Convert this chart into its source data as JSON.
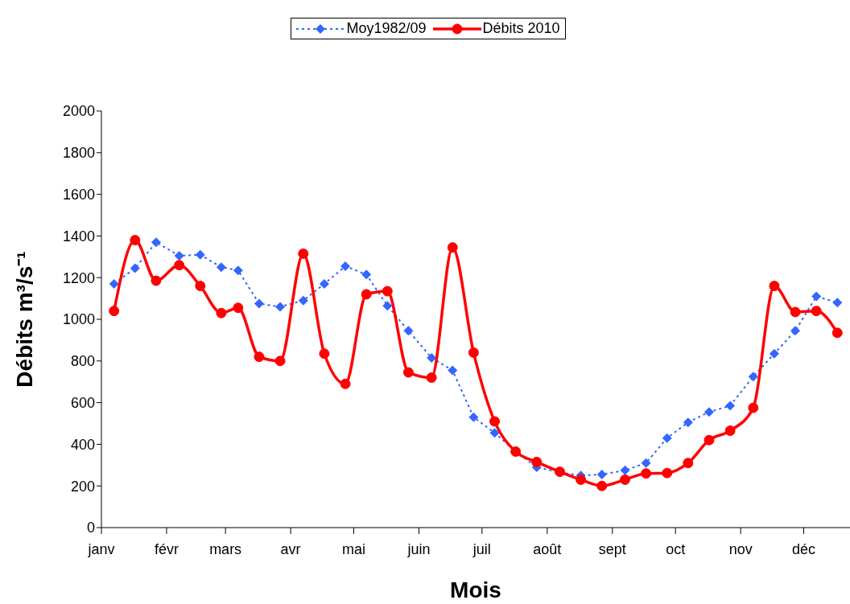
{
  "chart_data": {
    "type": "line",
    "xlabel": "Mois",
    "ylabel": "Débits m³/s⁻¹",
    "x": [
      "--01-07",
      "--01-17",
      "--01-27",
      "--02-07",
      "--02-17",
      "--02-27",
      "--03-07",
      "--03-17",
      "--03-27",
      "--04-07",
      "--04-17",
      "--04-27",
      "--05-07",
      "--05-17",
      "--05-27",
      "--06-07",
      "--06-17",
      "--06-27",
      "--07-07",
      "--07-17",
      "--07-27",
      "--08-07",
      "--08-17",
      "--08-27",
      "--09-07",
      "--09-17",
      "--09-27",
      "--10-07",
      "--10-17",
      "--10-27",
      "--11-07",
      "--11-17",
      "--11-27",
      "--12-07",
      "--12-17"
    ],
    "series": [
      {
        "name": "Moy1982/09",
        "color": "#3366ff",
        "marker": "diamond",
        "line_style": "dotted",
        "values": [
          1170,
          1245,
          1370,
          1305,
          1310,
          1250,
          1235,
          1075,
          1060,
          1090,
          1170,
          1255,
          1215,
          1065,
          945,
          815,
          755,
          530,
          455,
          365,
          290,
          265,
          250,
          255,
          275,
          310,
          430,
          505,
          555,
          585,
          725,
          835,
          945,
          1110,
          1080
        ]
      },
      {
        "name": "Débits 2010",
        "color": "#ff0000",
        "marker": "circle",
        "line_style": "solid",
        "values": [
          1040,
          1380,
          1185,
          1260,
          1160,
          1030,
          1055,
          820,
          800,
          1315,
          835,
          690,
          1120,
          1135,
          745,
          720,
          1345,
          840,
          510,
          365,
          315,
          268,
          230,
          200,
          230,
          260,
          262,
          310,
          420,
          465,
          575,
          1160,
          1035,
          1040,
          935
        ]
      }
    ],
    "xlim": [
      "--01-01",
      "--12-23"
    ],
    "xticks": [
      {
        "value": "--01-01",
        "label": "janv"
      },
      {
        "value": "--02-01",
        "label": "févr"
      },
      {
        "value": "--03-01",
        "label": "mars"
      },
      {
        "value": "--04-01",
        "label": "avr"
      },
      {
        "value": "--05-01",
        "label": "mai"
      },
      {
        "value": "--06-01",
        "label": "juin"
      },
      {
        "value": "--07-01",
        "label": "juil"
      },
      {
        "value": "--08-01",
        "label": "août"
      },
      {
        "value": "--09-01",
        "label": "sept"
      },
      {
        "value": "--10-01",
        "label": "oct"
      },
      {
        "value": "--11-01",
        "label": "nov"
      },
      {
        "value": "--12-01",
        "label": "déc"
      }
    ],
    "ylim": [
      0,
      2000
    ],
    "yticks": [
      0,
      200,
      400,
      600,
      800,
      1000,
      1200,
      1400,
      1600,
      1800,
      2000
    ],
    "grid": false,
    "legend": "top"
  }
}
